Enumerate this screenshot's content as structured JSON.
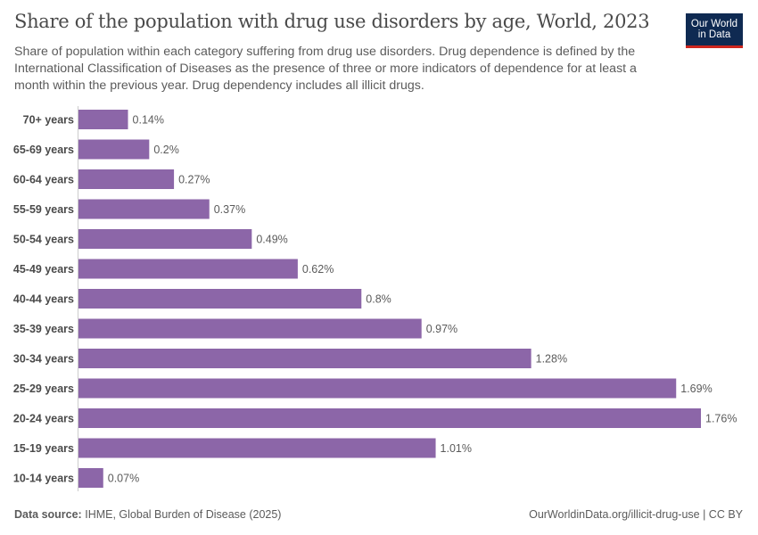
{
  "header": {
    "title": "Share of the population with drug use disorders by age, World, 2023",
    "subtitle": "Share of population within each category suffering from drug use disorders. Drug dependence is defined by the International Classification of Diseases as the presence of three or more indicators of dependence for at least a month within the previous year. Drug dependency includes all illicit drugs.",
    "logo": "Our World in Data"
  },
  "footer": {
    "source_label": "Data source:",
    "source": "IHME, Global Burden of Disease (2025)",
    "link": "OurWorldinData.org/illicit-drug-use | CC BY"
  },
  "colors": {
    "bar": "#8c66a8",
    "logo_bg": "#0f2a52",
    "logo_accent": "#ce261e"
  },
  "chart_data": {
    "type": "bar",
    "orientation": "horizontal",
    "categories": [
      "70+ years",
      "65-69 years",
      "60-64 years",
      "55-59 years",
      "50-54 years",
      "45-49 years",
      "40-44 years",
      "35-39 years",
      "30-34 years",
      "25-29 years",
      "20-24 years",
      "15-19 years",
      "10-14 years"
    ],
    "values": [
      0.14,
      0.2,
      0.27,
      0.37,
      0.49,
      0.62,
      0.8,
      0.97,
      1.28,
      1.69,
      1.76,
      1.01,
      0.07
    ],
    "labels": [
      "0.14%",
      "0.2%",
      "0.27%",
      "0.37%",
      "0.49%",
      "0.62%",
      "0.8%",
      "0.97%",
      "1.28%",
      "1.69%",
      "1.76%",
      "1.01%",
      "0.07%"
    ],
    "unit": "%",
    "xlim": [
      0,
      1.76
    ],
    "grid": false
  }
}
